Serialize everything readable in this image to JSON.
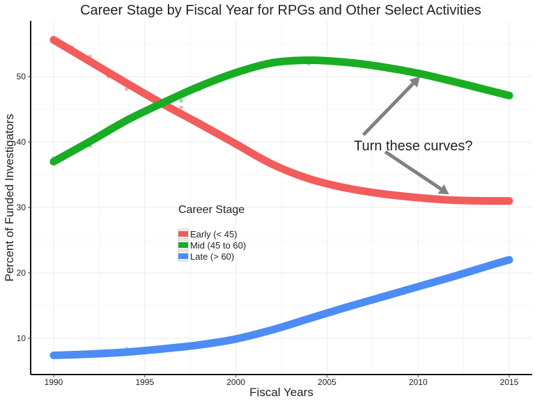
{
  "chart_data": {
    "type": "line",
    "title": "Career Stage by Fiscal Year for RPGs and Other Select Activities",
    "xlabel": "Fiscal Years",
    "ylabel": "Percent of Funded Investigators",
    "xlim": [
      1990,
      2015
    ],
    "ylim": [
      5,
      58
    ],
    "x_ticks": [
      1990,
      1995,
      2000,
      2005,
      2010,
      2015
    ],
    "y_ticks": [
      10,
      20,
      30,
      40,
      50
    ],
    "grid": true,
    "legend": {
      "title": "Career Stage",
      "position": "center-left",
      "entries": [
        "Early (< 45)",
        "Mid (45 to 60)",
        "Late (> 60)"
      ]
    },
    "series": [
      {
        "name": "Early (< 45)",
        "color": "#f25c5c",
        "x": [
          1990,
          1992,
          1994,
          1996,
          1998,
          2000,
          2002,
          2004,
          2006,
          2008,
          2010,
          2012,
          2014,
          2015
        ],
        "values": [
          55.6,
          52.3,
          49.0,
          45.8,
          42.8,
          39.7,
          36.6,
          34.4,
          33.0,
          32.1,
          31.5,
          31.1,
          31.0,
          31.0
        ],
        "points": [
          [
            1990,
            56.0
          ],
          [
            1991,
            54.5
          ],
          [
            1992,
            53.1
          ],
          [
            1993,
            50.0
          ],
          [
            1994,
            48.1
          ],
          [
            1997,
            45.3
          ],
          [
            1998,
            43.2
          ],
          [
            2008,
            32.1
          ],
          [
            2011,
            31.3
          ],
          [
            2015,
            30.9
          ]
        ]
      },
      {
        "name": "Mid (45 to 60)",
        "color": "#19ad24",
        "x": [
          1990,
          1992,
          1994,
          1996,
          1998,
          2000,
          2002,
          2004,
          2006,
          2008,
          2010,
          2012,
          2014,
          2015
        ],
        "values": [
          37.0,
          40.1,
          43.3,
          46.0,
          48.5,
          50.6,
          52.1,
          52.5,
          52.2,
          51.5,
          50.5,
          49.2,
          47.8,
          47.1
        ],
        "points": [
          [
            1990,
            37.5
          ],
          [
            1992,
            39.4
          ],
          [
            1997,
            46.3
          ],
          [
            1998,
            48.0
          ],
          [
            2002,
            52.5
          ],
          [
            2004,
            52.0
          ],
          [
            2015,
            47.2
          ]
        ]
      },
      {
        "name": "Late (> 60)",
        "color": "#4d8cf5",
        "x": [
          1990,
          1992,
          1994,
          1996,
          1998,
          2000,
          2002,
          2004,
          2006,
          2008,
          2010,
          2012,
          2014,
          2015
        ],
        "values": [
          7.4,
          7.6,
          7.9,
          8.4,
          9.0,
          9.9,
          11.3,
          13.0,
          14.7,
          16.3,
          17.9,
          19.5,
          21.2,
          22.0
        ],
        "points": [
          [
            1990,
            7.1
          ],
          [
            1993,
            8.1
          ],
          [
            1994,
            8.4
          ],
          [
            1995,
            8.4
          ],
          [
            2015,
            21.9
          ]
        ]
      }
    ],
    "annotations": [
      {
        "text": "Turn these curves?",
        "arrows": [
          {
            "from": [
              2007.0,
              41.1
            ],
            "to": [
              2010.1,
              50.0
            ]
          },
          {
            "from": [
              2008.2,
              38.5
            ],
            "to": [
              2011.7,
              32.0
            ]
          }
        ]
      }
    ]
  }
}
